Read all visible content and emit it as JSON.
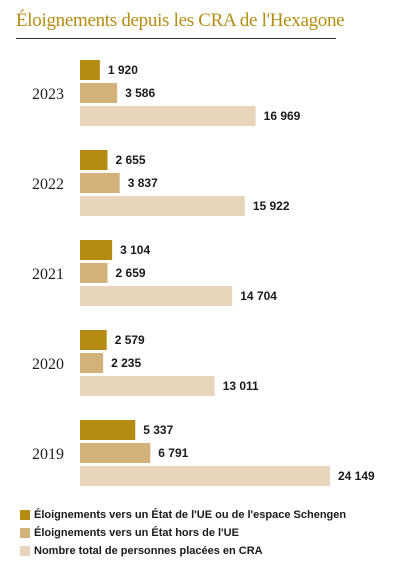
{
  "chart_data": {
    "type": "bar",
    "orientation": "horizontal",
    "title": "Éloignements depuis les CRA de l'Hexagone",
    "categories": [
      "2023",
      "2022",
      "2021",
      "2020",
      "2019"
    ],
    "series": [
      {
        "name": "Éloignements vers un État de l'UE ou de l'espace Schengen",
        "color": "#b48c14",
        "values": [
          1920,
          2655,
          3104,
          2579,
          5337
        ],
        "labels": [
          "1 920",
          "2 655",
          "3 104",
          "2 579",
          "5 337"
        ]
      },
      {
        "name": "Éloignements vers un État hors de l'UE",
        "color": "#d2b27a",
        "values": [
          3586,
          3837,
          2659,
          2235,
          6791
        ],
        "labels": [
          "3 586",
          "3 837",
          "2 659",
          "2 235",
          "6 791"
        ]
      },
      {
        "name": "Nombre total de personnes placées en CRA",
        "color": "#e8d6bc",
        "values": [
          16969,
          15922,
          14704,
          13011,
          24149
        ],
        "labels": [
          "16 969",
          "15 922",
          "14 704",
          "13 011",
          "24 149"
        ]
      }
    ],
    "xlim": [
      0,
      24149
    ],
    "grid": false,
    "legend_position": "bottom-left",
    "title_color": "#b48c14"
  }
}
